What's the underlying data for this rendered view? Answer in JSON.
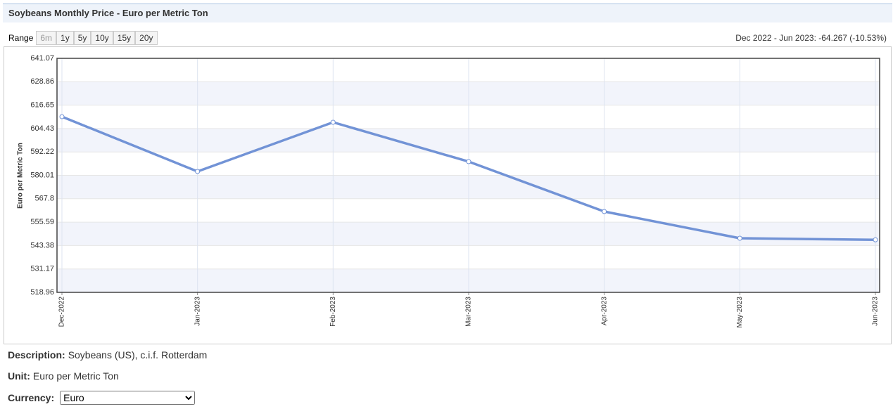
{
  "chart_data": {
    "type": "line",
    "title": "Soybeans Monthly Price - Euro per Metric Ton",
    "y_label": "Euro per Metric Ton",
    "categories": [
      "Dec-2022",
      "Jan-2023",
      "Feb-2023",
      "Mar-2023",
      "Apr-2023",
      "May-2023",
      "Jun-2023"
    ],
    "series": [
      {
        "name": "Soybeans",
        "color": "#7293d6",
        "values": [
          610.63,
          582.03,
          607.7,
          587.17,
          561.13,
          547.19,
          546.36
        ]
      }
    ],
    "ylim": [
      518.96,
      641.07
    ],
    "yticks": [
      518.96,
      531.17,
      543.38,
      555.59,
      567.8,
      580.01,
      592.22,
      604.43,
      616.65,
      628.86,
      641.07
    ],
    "grid": true,
    "band_color": "#f2f4fb"
  },
  "range": {
    "label": "Range",
    "options": [
      "6m",
      "1y",
      "5y",
      "10y",
      "15y",
      "20y"
    ]
  },
  "change_summary": "Dec 2022 - Jun 2023: -64.267 (-10.53%)",
  "description": {
    "label": "Description:",
    "value": "Soybeans (US), c.i.f. Rotterdam"
  },
  "unit": {
    "label": "Unit:",
    "value": "Euro per Metric Ton"
  },
  "currency": {
    "label": "Currency:",
    "value": "Euro"
  }
}
